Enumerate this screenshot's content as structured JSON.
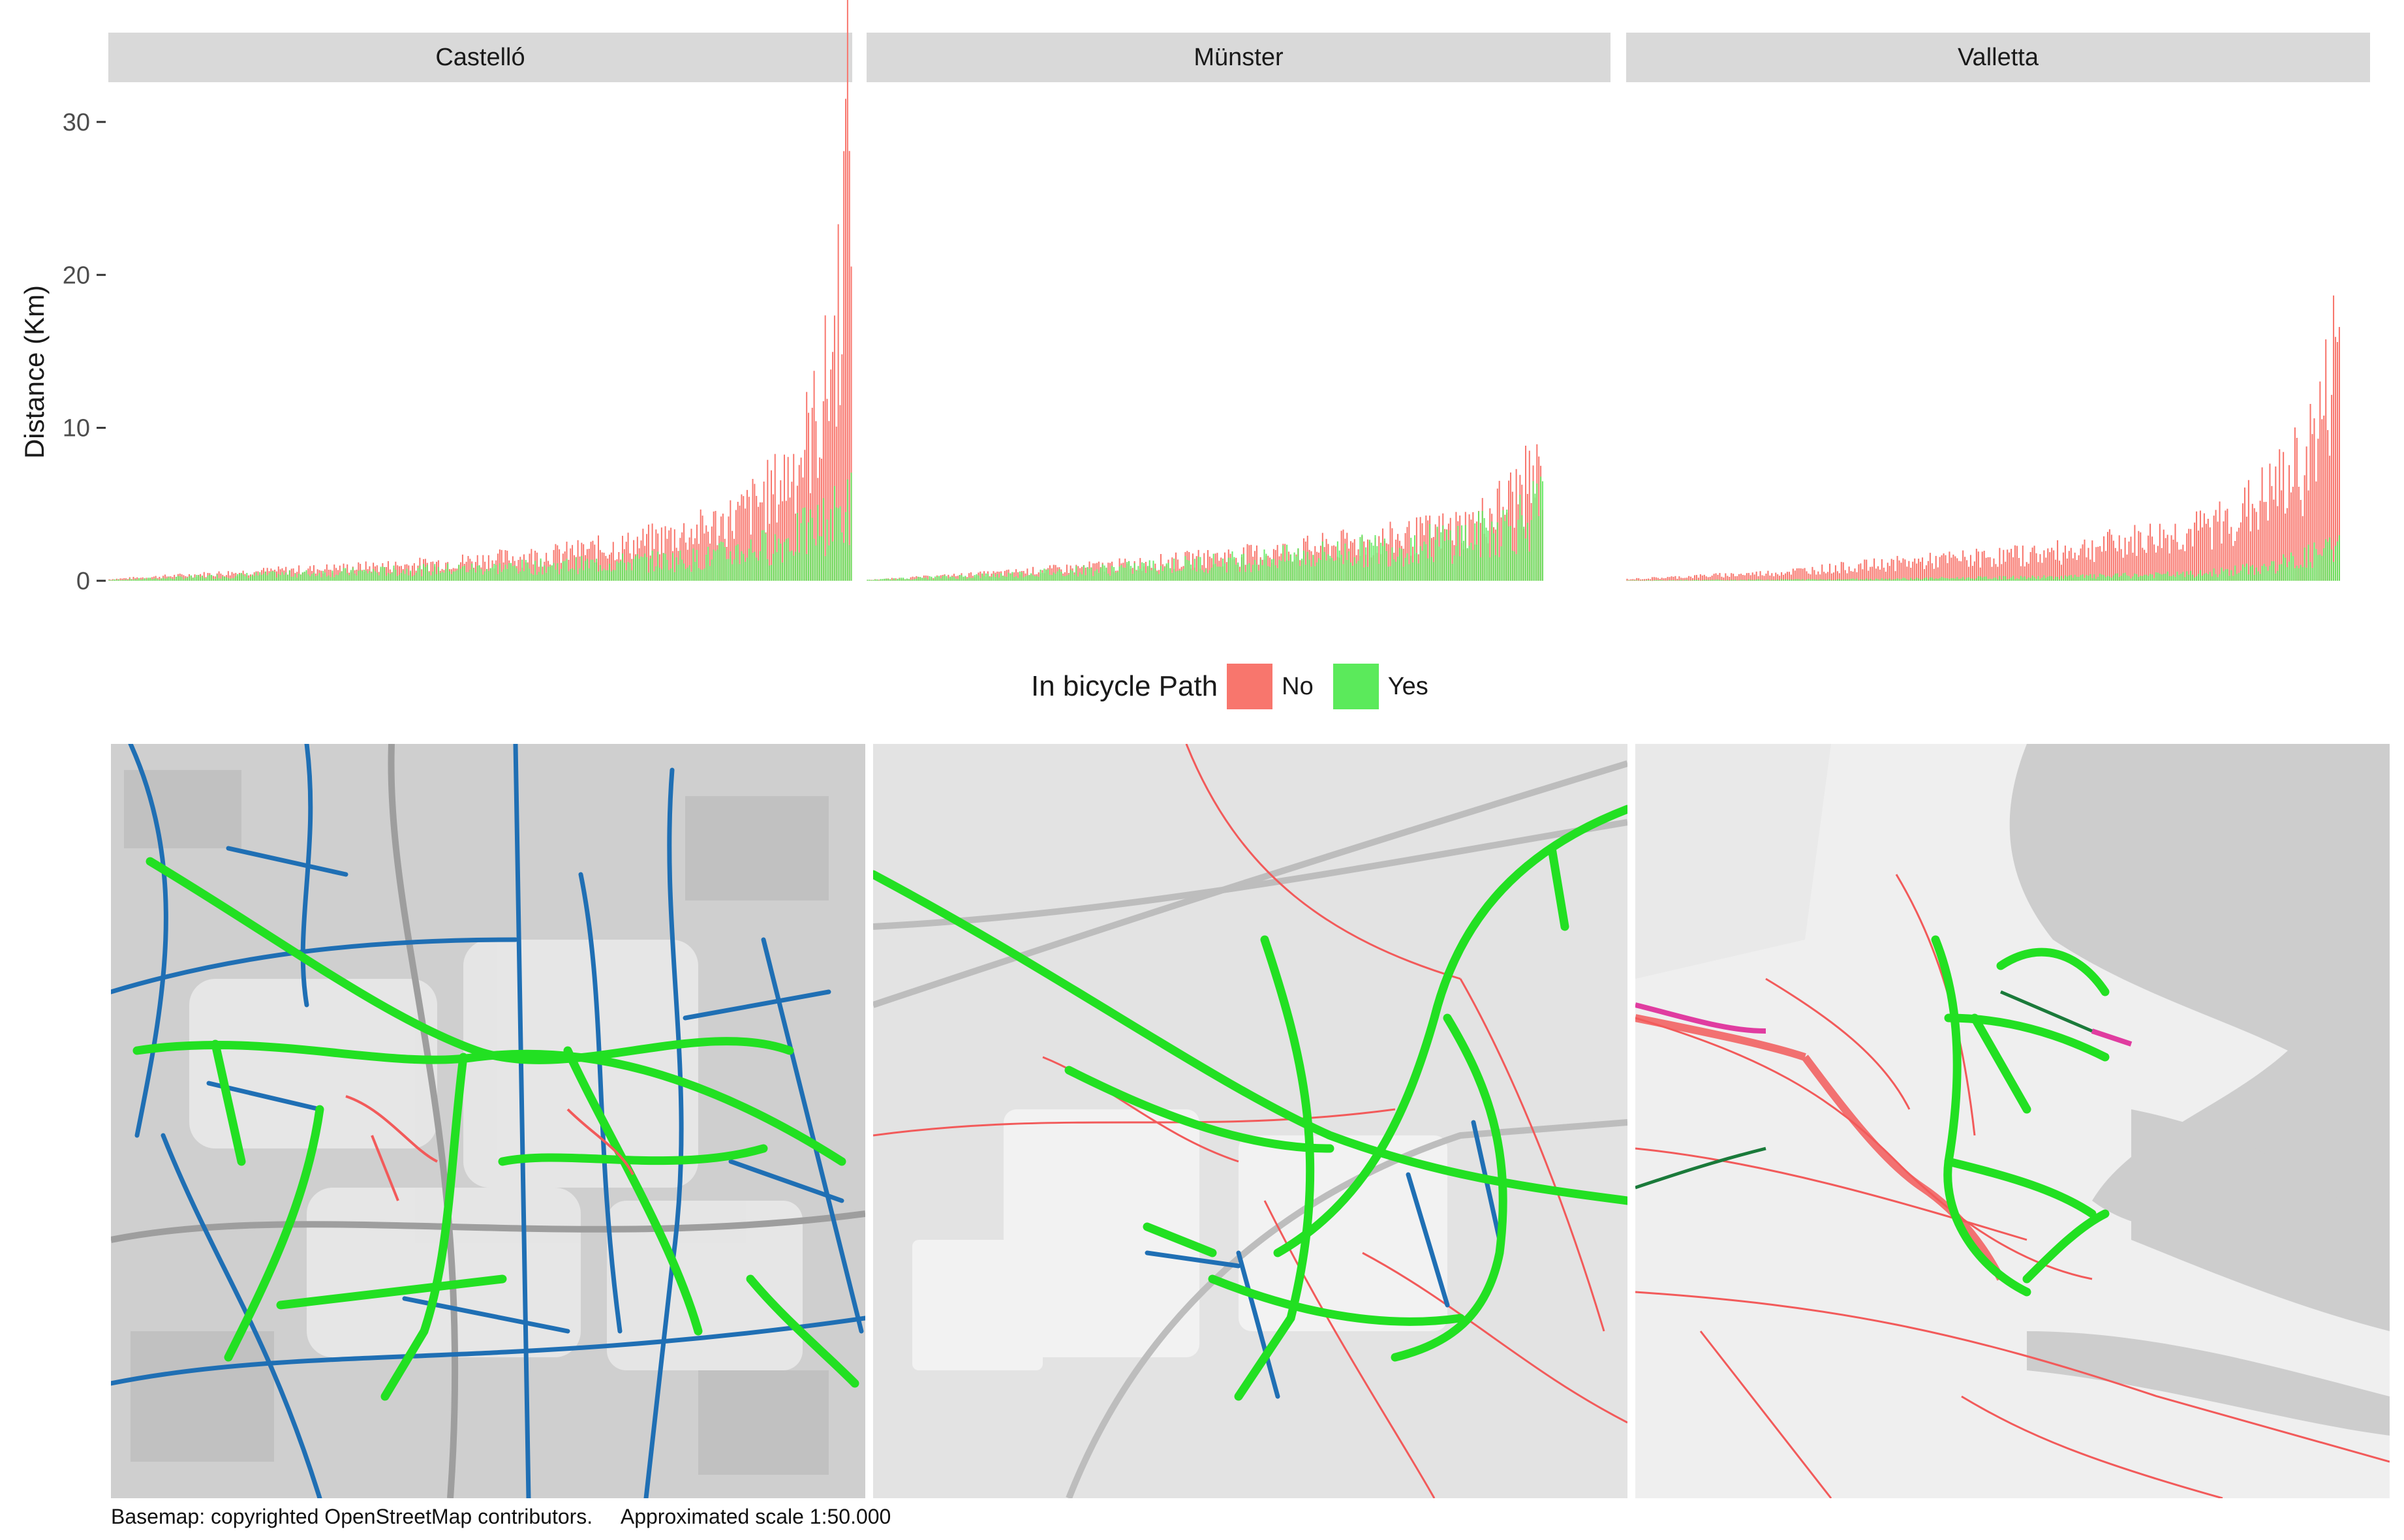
{
  "legend": {
    "title": "In bicycle Path",
    "items": [
      {
        "label": "No",
        "color": "#F8766D"
      },
      {
        "label": "Yes",
        "color": "#00E400"
      }
    ]
  },
  "footer": {
    "basemap": "Basemap: copyrighted OpenStreetMap contributors.",
    "scale": "Approximated scale 1:50.000"
  },
  "chart_data": {
    "type": "bar",
    "stacked": true,
    "ylabel": "Distance (Km)",
    "yticks": [
      0,
      10,
      20,
      30
    ],
    "ylim": [
      0,
      32
    ],
    "grid": false,
    "legend_position": "middle",
    "series": [
      {
        "name": "No",
        "color": "#F8766D"
      },
      {
        "name": "Yes",
        "color": "#00E400"
      }
    ],
    "facets": [
      {
        "name": "Castelló",
        "trip_count": 400,
        "no_km_profile": {
          "x": [
            0,
            0.2,
            0.4,
            0.6,
            0.7,
            0.8,
            0.85,
            0.9,
            0.93,
            0.96,
            0.98,
            1.0
          ],
          "y": [
            0.1,
            0.6,
            1.0,
            1.7,
            2.3,
            3.3,
            4.2,
            6.0,
            8.0,
            11.0,
            16.0,
            32.0
          ]
        },
        "yes_km_profile": {
          "x": [
            0,
            0.2,
            0.4,
            0.6,
            0.8,
            0.9,
            0.95,
            1.0
          ],
          "y": [
            0.05,
            0.4,
            0.7,
            1.0,
            1.5,
            2.5,
            3.5,
            5.0
          ]
        }
      },
      {
        "name": "Münster",
        "trip_count": 360,
        "no_km_profile": {
          "x": [
            0,
            0.2,
            0.4,
            0.6,
            0.8,
            0.9,
            0.95,
            1.0
          ],
          "y": [
            0.05,
            0.5,
            1.1,
            1.8,
            2.8,
            3.6,
            5.2,
            7.0
          ]
        },
        "yes_km_profile": {
          "x": [
            0,
            0.2,
            0.4,
            0.6,
            0.8,
            0.9,
            0.95,
            1.0
          ],
          "y": [
            0.05,
            0.4,
            0.9,
            1.5,
            2.3,
            3.0,
            3.8,
            4.8
          ]
        }
      },
      {
        "name": "Valletta",
        "trip_count": 370,
        "no_km_profile": {
          "x": [
            0,
            0.2,
            0.4,
            0.6,
            0.7,
            0.8,
            0.85,
            0.9,
            0.95,
            0.98,
            1.0
          ],
          "y": [
            0.1,
            0.5,
            1.2,
            1.8,
            2.5,
            3.2,
            4.0,
            5.5,
            7.5,
            11.0,
            16.0
          ]
        },
        "yes_km_profile": {
          "x": [
            0,
            0.3,
            0.6,
            0.8,
            0.9,
            1.0
          ],
          "y": [
            0.02,
            0.1,
            0.25,
            0.45,
            0.9,
            2.2
          ]
        }
      }
    ]
  }
}
